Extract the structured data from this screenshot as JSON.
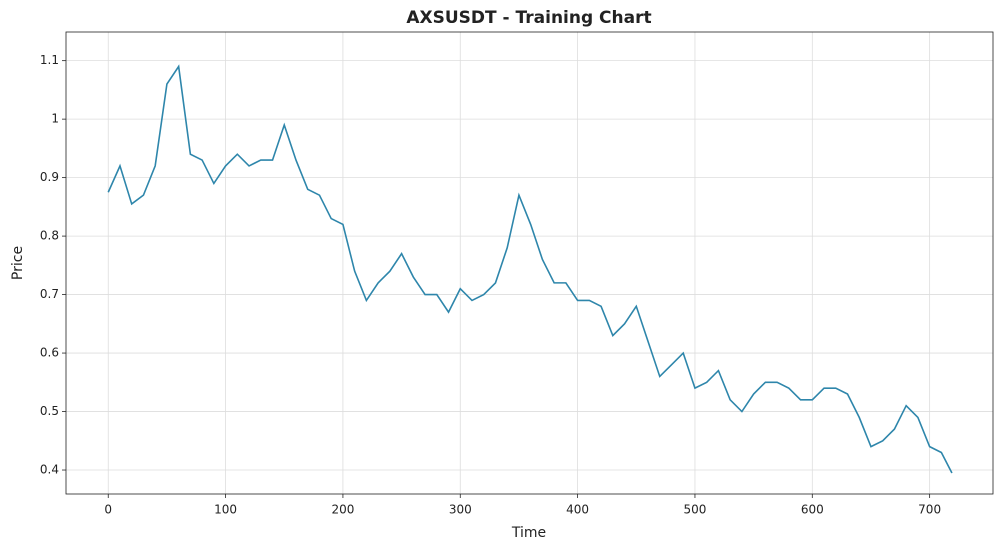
{
  "chart_data": {
    "type": "line",
    "title": "AXSUSDT - Training Chart",
    "x_label": "Time",
    "y_label": "Price",
    "x": [
      0,
      10,
      20,
      30,
      40,
      50,
      60,
      70,
      80,
      90,
      100,
      110,
      120,
      130,
      140,
      150,
      160,
      170,
      180,
      190,
      200,
      210,
      220,
      230,
      240,
      250,
      260,
      270,
      280,
      290,
      300,
      310,
      320,
      330,
      340,
      350,
      360,
      370,
      380,
      390,
      400,
      410,
      420,
      430,
      440,
      450,
      460,
      470,
      480,
      490,
      500,
      510,
      520,
      530,
      540,
      550,
      560,
      570,
      580,
      590,
      600,
      610,
      620,
      630,
      640,
      650,
      660,
      670,
      680,
      690,
      700,
      710,
      719
    ],
    "series": [
      {
        "name": "Price",
        "color": "#2e86ab",
        "values": [
          0.875,
          0.92,
          0.855,
          0.87,
          0.92,
          1.06,
          1.09,
          0.94,
          0.93,
          0.89,
          0.92,
          0.94,
          0.92,
          0.93,
          0.93,
          0.99,
          0.93,
          0.88,
          0.87,
          0.83,
          0.82,
          0.74,
          0.69,
          0.72,
          0.74,
          0.77,
          0.73,
          0.7,
          0.7,
          0.67,
          0.71,
          0.69,
          0.7,
          0.72,
          0.78,
          0.87,
          0.82,
          0.76,
          0.72,
          0.72,
          0.69,
          0.69,
          0.68,
          0.63,
          0.65,
          0.68,
          0.62,
          0.56,
          0.58,
          0.6,
          0.54,
          0.55,
          0.57,
          0.52,
          0.5,
          0.53,
          0.55,
          0.55,
          0.54,
          0.52,
          0.52,
          0.54,
          0.54,
          0.53,
          0.49,
          0.44,
          0.45,
          0.47,
          0.51,
          0.49,
          0.44,
          0.43,
          0.395
        ]
      }
    ],
    "xlim": [
      -36,
      754
    ],
    "ylim": [
      0.359,
      1.149
    ],
    "xticks": [
      0,
      100,
      200,
      300,
      400,
      500,
      600,
      700
    ],
    "yticks": [
      0.4,
      0.5,
      0.6,
      0.7,
      0.8,
      0.9,
      1.0,
      1.1
    ],
    "grid": true
  }
}
